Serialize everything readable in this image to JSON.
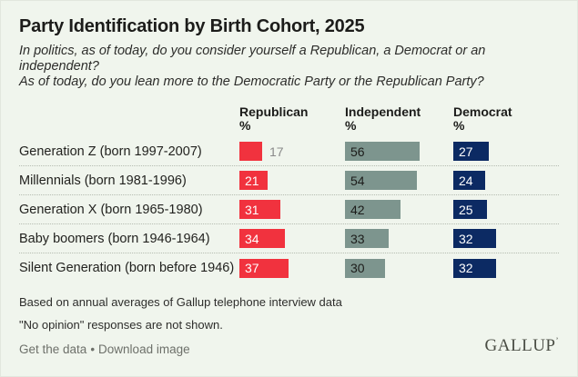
{
  "header": {
    "title": "Party Identification by Birth Cohort, 2025",
    "subtitle_line1": "In politics, as of today, do you consider yourself a Republican, a Democrat or an independent?",
    "subtitle_line2": "As of today, do you lean more to the Democratic Party or the Republican Party?"
  },
  "chart_data": {
    "type": "bar",
    "orientation": "horizontal",
    "title": "Party Identification by Birth Cohort, 2025",
    "categories": [
      "Generation Z (born 1997-2007)",
      "Millennials (born 1981-1996)",
      "Generation X (born 1965-1980)",
      "Baby boomers (born 1946-1964)",
      "Silent Generation (born before 1946)"
    ],
    "series": [
      {
        "name": "Republican",
        "unit": "%",
        "color": "#f1323e",
        "values": [
          17,
          21,
          31,
          34,
          37
        ]
      },
      {
        "name": "Independent",
        "unit": "%",
        "color": "#7d958e",
        "values": [
          56,
          54,
          42,
          33,
          30
        ]
      },
      {
        "name": "Democrat",
        "unit": "%",
        "color": "#0c2a63",
        "values": [
          27,
          24,
          25,
          32,
          32
        ]
      }
    ],
    "xlim": [
      0,
      60
    ],
    "value_labels": "on-bar",
    "grid": "off",
    "legend_position": "column-headers"
  },
  "footer": {
    "note1": "Based on annual averages of Gallup telephone interview data",
    "note2": "\"No opinion\" responses are not shown.",
    "link1": "Get the data",
    "separator": "•",
    "link2": "Download image",
    "logo": "GALLUP",
    "logo_mark": "’"
  },
  "colors": {
    "background": "#f0f5ed",
    "republican": "#f1323e",
    "independent": "#7d958e",
    "democrat": "#0c2a63",
    "outside_value_text": "#8a8a8a",
    "dotted_separator": "#b5bcb1"
  }
}
